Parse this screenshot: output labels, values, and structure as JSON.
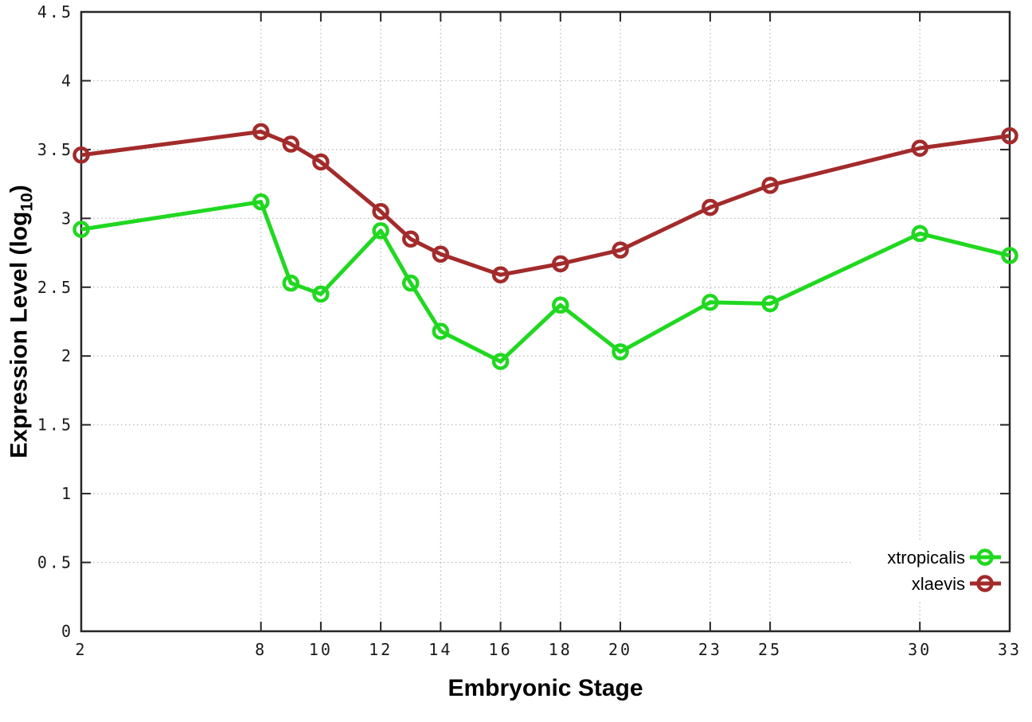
{
  "chart_data": {
    "type": "line",
    "title": "",
    "xlabel": "Embryonic Stage",
    "ylabel": "Expression Level (log10)",
    "ylabel_parts": {
      "main": "Expression Level (log",
      "sub": "10",
      "end": ")"
    },
    "x": [
      2,
      8,
      9,
      10,
      12,
      13,
      14,
      16,
      18,
      20,
      23,
      25,
      30,
      33
    ],
    "series": [
      {
        "name": "xtropicalis",
        "color": "#20d820",
        "values": [
          2.92,
          3.12,
          2.53,
          2.45,
          2.91,
          2.53,
          2.18,
          1.96,
          2.37,
          2.03,
          2.39,
          2.38,
          2.89,
          2.73
        ]
      },
      {
        "name": "xlaevis",
        "color": "#a32b2b",
        "values": [
          3.46,
          3.63,
          3.54,
          3.41,
          3.05,
          2.85,
          2.74,
          2.59,
          2.67,
          2.77,
          3.08,
          3.24,
          3.51,
          3.6
        ]
      }
    ],
    "xlim": [
      2,
      33
    ],
    "ylim": [
      0,
      4.5
    ],
    "xticks": {
      "values": [
        2,
        8,
        10,
        12,
        14,
        16,
        18,
        20,
        23,
        25,
        30,
        33
      ],
      "labels": [
        "2",
        "8",
        "10",
        "12",
        "14",
        "16",
        "18",
        "20",
        "23",
        "25",
        "30",
        "33"
      ]
    },
    "yticks": {
      "values": [
        0,
        0.5,
        1,
        1.5,
        2,
        2.5,
        3,
        3.5,
        4,
        4.5
      ],
      "labels": [
        "0",
        "0.5",
        "1",
        "1.5",
        "2",
        "2.5",
        "3",
        "3.5",
        "4",
        "4.5"
      ]
    },
    "grid": true,
    "marker": "open-circle",
    "legend_position": "bottom-right-inside",
    "legend": [
      "xtropicalis",
      "xlaevis"
    ]
  },
  "colors": {
    "background": "#ffffff",
    "grid": "#b5b5b5",
    "axis": "#262626",
    "tick_text": "#1a1a1a",
    "xtropicalis": "#20d820",
    "xlaevis": "#a32b2b"
  }
}
